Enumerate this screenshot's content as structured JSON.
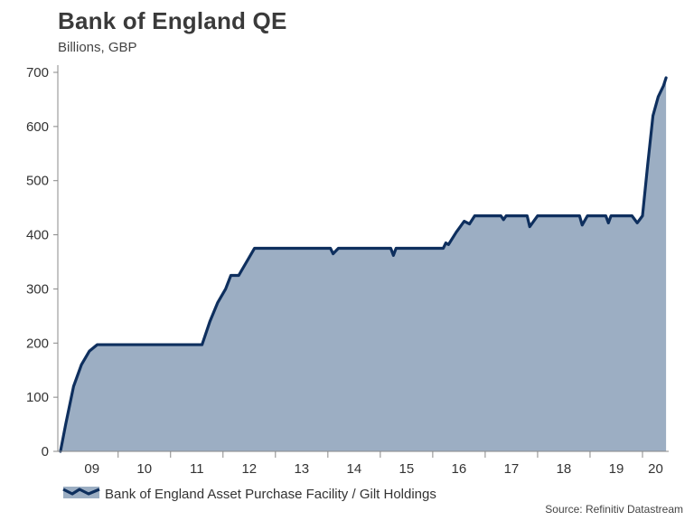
{
  "chart_data": {
    "type": "area",
    "title": "Bank of England QE",
    "subtitle": "Billions, GBP",
    "xlabel": "",
    "ylabel": "",
    "xlim": [
      2008.85,
      2020.5
    ],
    "ylim": [
      0,
      700
    ],
    "yticks": [
      0,
      100,
      200,
      300,
      400,
      500,
      600,
      700
    ],
    "xticks": [
      {
        "label": "09",
        "value": 2009.5
      },
      {
        "label": "10",
        "value": 2010.5
      },
      {
        "label": "11",
        "value": 2011.5
      },
      {
        "label": "12",
        "value": 2012.5
      },
      {
        "label": "13",
        "value": 2013.5
      },
      {
        "label": "14",
        "value": 2014.5
      },
      {
        "label": "15",
        "value": 2015.5
      },
      {
        "label": "16",
        "value": 2016.5
      },
      {
        "label": "17",
        "value": 2017.5
      },
      {
        "label": "18",
        "value": 2018.5
      },
      {
        "label": "19",
        "value": 2019.5
      },
      {
        "label": "20",
        "value": 2020.5
      }
    ],
    "legend": "bottom-left",
    "series": [
      {
        "name": "Bank of England Asset Purchase Facility / Gilt Holdings",
        "line_color": "#0e2f5e",
        "fill_color": "#9caec3",
        "x": [
          2008.9,
          2009.0,
          2009.15,
          2009.3,
          2009.45,
          2009.6,
          2009.7,
          2009.8,
          2011.6,
          2011.75,
          2011.9,
          2012.05,
          2012.15,
          2012.3,
          2012.45,
          2012.6,
          2012.75,
          2012.85,
          2012.9,
          2013.5,
          2014.05,
          2014.1,
          2014.2,
          2015.0,
          2015.2,
          2015.25,
          2015.3,
          2016.0,
          2016.2,
          2016.25,
          2016.3,
          2016.45,
          2016.6,
          2016.7,
          2016.8,
          2017.0,
          2017.3,
          2017.35,
          2017.4,
          2017.7,
          2017.8,
          2017.85,
          2018.0,
          2018.7,
          2018.8,
          2018.85,
          2018.95,
          2019.1,
          2019.3,
          2019.35,
          2019.4,
          2019.7,
          2019.8,
          2019.9,
          2020.0,
          2020.1,
          2020.2,
          2020.3,
          2020.4,
          2020.45
        ],
        "values": [
          0,
          50,
          120,
          160,
          185,
          197,
          197,
          197,
          197,
          240,
          275,
          300,
          325,
          325,
          350,
          375,
          375,
          375,
          375,
          375,
          375,
          365,
          375,
          375,
          375,
          362,
          375,
          375,
          375,
          385,
          382,
          405,
          425,
          420,
          435,
          435,
          435,
          428,
          435,
          435,
          435,
          415,
          435,
          435,
          435,
          418,
          435,
          435,
          435,
          422,
          435,
          435,
          435,
          422,
          435,
          530,
          620,
          655,
          675,
          690
        ]
      }
    ]
  },
  "legend_label": "Bank of England Asset Purchase Facility / Gilt Holdings",
  "source": "Source: Refinitiv Datastream"
}
